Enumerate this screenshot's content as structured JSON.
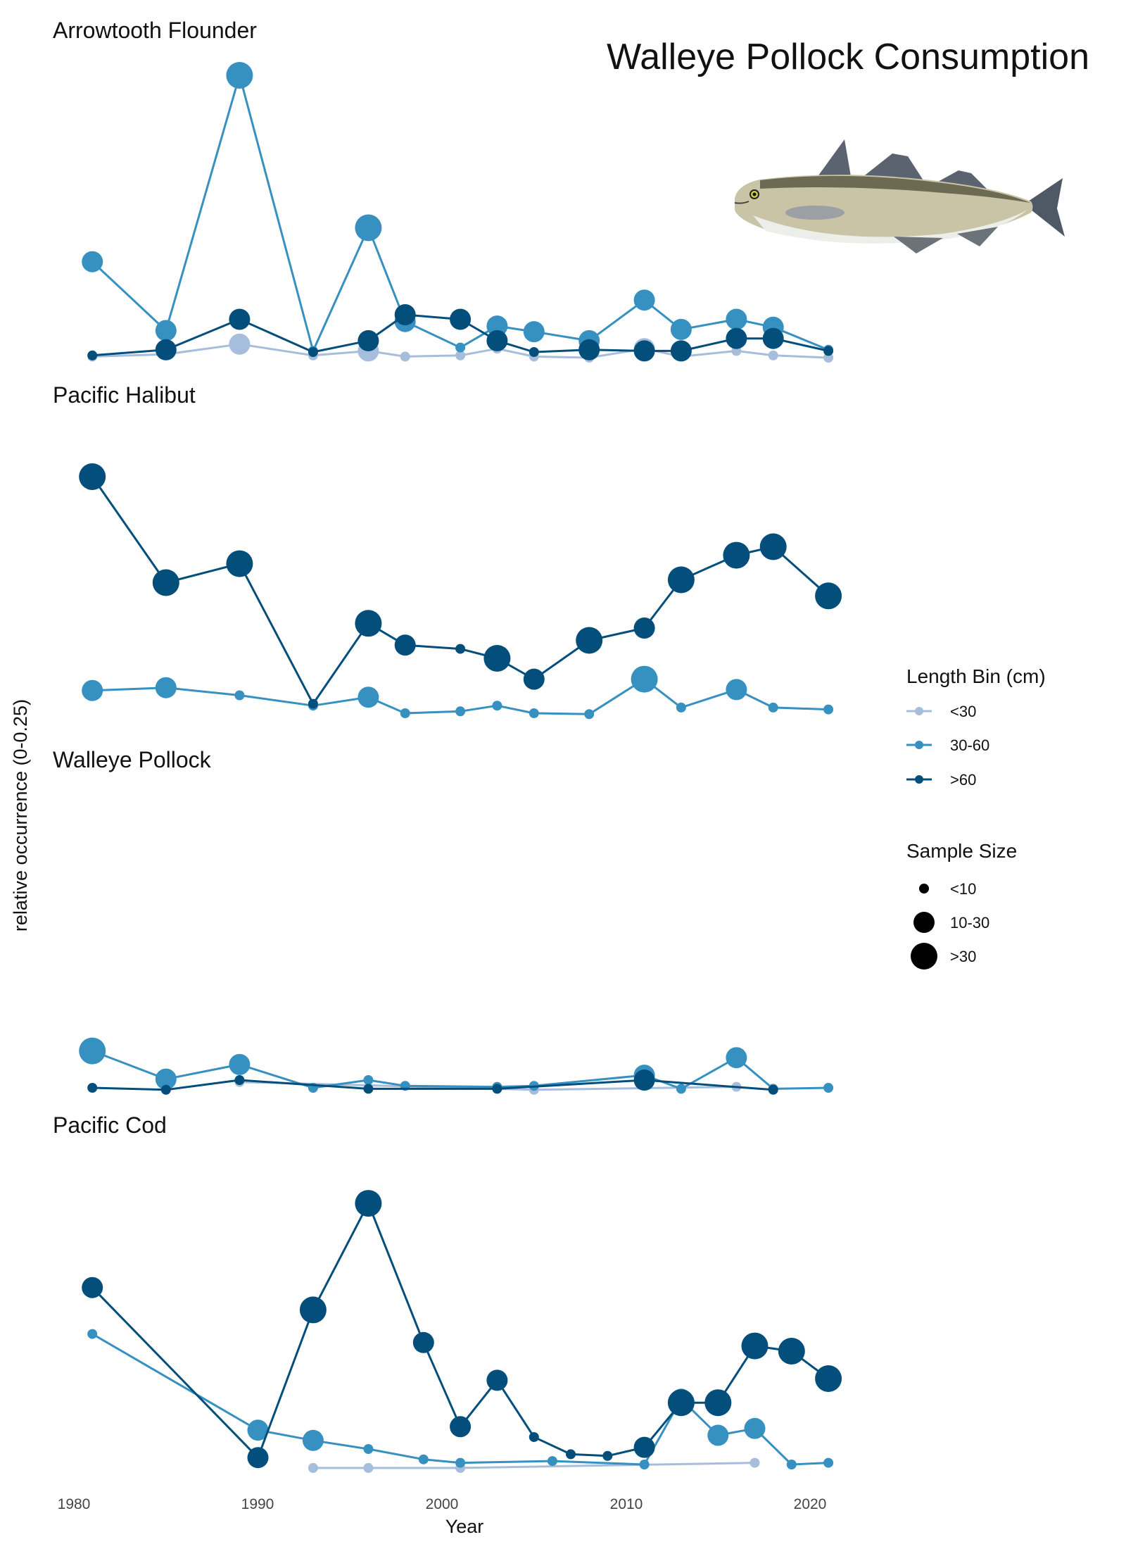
{
  "title": "Walleye Pollock Consumption",
  "image_alt": "Walleye pollock illustration",
  "chart_data": {
    "type": "line",
    "xlabel": "Year",
    "ylabel": "relative occurrence (0-0.25)",
    "xlim": [
      1980,
      2022
    ],
    "xticks": [
      1980,
      1990,
      2000,
      2010,
      2020
    ],
    "legend": {
      "length_title": "Length Bin (cm)",
      "length_bins": [
        {
          "label": "<30",
          "color": "#a6bddb"
        },
        {
          "label": "30-60",
          "color": "#3690c0"
        },
        {
          "label": ">60",
          "color": "#034e7b"
        }
      ],
      "size_title": "Sample Size",
      "sizes": [
        {
          "label": "<10",
          "size": 1
        },
        {
          "label": "10-30",
          "size": 2
        },
        {
          "label": ">30",
          "size": 3
        }
      ],
      "placement": "right"
    },
    "panels": [
      {
        "name": "Arrowtooth Flounder",
        "ylim": [
          0,
          0.25
        ],
        "series": [
          {
            "bin": "<30",
            "points": [
              [
                1981,
                0.001,
                1
              ],
              [
                1985,
                0.003,
                1
              ],
              [
                1989,
                0.012,
                2
              ],
              [
                1993,
                0.002,
                1
              ],
              [
                1996,
                0.006,
                2
              ],
              [
                1998,
                0.001,
                1
              ],
              [
                2001,
                0.002,
                1
              ],
              [
                2003,
                0.008,
                1
              ],
              [
                2005,
                0.001,
                1
              ],
              [
                2008,
                0.0,
                1
              ],
              [
                2011,
                0.008,
                2
              ],
              [
                2013,
                0.001,
                1
              ],
              [
                2016,
                0.006,
                1
              ],
              [
                2018,
                0.002,
                1
              ],
              [
                2021,
                0.0,
                1
              ]
            ]
          },
          {
            "bin": "30-60",
            "points": [
              [
                1981,
                0.085,
                2
              ],
              [
                1985,
                0.024,
                2
              ],
              [
                1989,
                0.25,
                3
              ],
              [
                1993,
                0.006,
                1
              ],
              [
                1996,
                0.115,
                3
              ],
              [
                1998,
                0.032,
                2
              ],
              [
                2001,
                0.009,
                1
              ],
              [
                2003,
                0.028,
                2
              ],
              [
                2005,
                0.023,
                2
              ],
              [
                2008,
                0.015,
                2
              ],
              [
                2011,
                0.051,
                2
              ],
              [
                2013,
                0.025,
                2
              ],
              [
                2016,
                0.034,
                2
              ],
              [
                2018,
                0.027,
                2
              ],
              [
                2021,
                0.007,
                1
              ]
            ]
          },
          {
            "bin": ">60",
            "points": [
              [
                1981,
                0.002,
                1
              ],
              [
                1985,
                0.007,
                2
              ],
              [
                1989,
                0.034,
                2
              ],
              [
                1993,
                0.005,
                1
              ],
              [
                1996,
                0.015,
                2
              ],
              [
                1998,
                0.038,
                2
              ],
              [
                2001,
                0.034,
                2
              ],
              [
                2003,
                0.015,
                2
              ],
              [
                2005,
                0.005,
                1
              ],
              [
                2008,
                0.007,
                2
              ],
              [
                2011,
                0.006,
                2
              ],
              [
                2013,
                0.006,
                2
              ],
              [
                2016,
                0.017,
                2
              ],
              [
                2018,
                0.017,
                2
              ],
              [
                2021,
                0.006,
                1
              ]
            ]
          }
        ]
      },
      {
        "name": "Pacific Halibut",
        "ylim": [
          0,
          0.25
        ],
        "series": [
          {
            "bin": "30-60",
            "points": [
              [
                1981,
                0.024,
                2
              ],
              [
                1985,
                0.027,
                2
              ],
              [
                1989,
                0.019,
                1
              ],
              [
                1993,
                0.008,
                1
              ],
              [
                1996,
                0.017,
                2
              ],
              [
                1998,
                0.0,
                1
              ],
              [
                2001,
                0.002,
                1
              ],
              [
                2003,
                0.008,
                1
              ],
              [
                2005,
                0.0,
                1
              ],
              [
                2008,
                -0.001,
                1
              ],
              [
                2011,
                0.036,
                3
              ],
              [
                2013,
                0.006,
                1
              ],
              [
                2016,
                0.025,
                2
              ],
              [
                2018,
                0.006,
                1
              ],
              [
                2021,
                0.004,
                1
              ]
            ]
          },
          {
            "bin": ">60",
            "points": [
              [
                1981,
                0.25,
                3
              ],
              [
                1985,
                0.138,
                3
              ],
              [
                1989,
                0.158,
                3
              ],
              [
                1993,
                0.01,
                1
              ],
              [
                1996,
                0.095,
                3
              ],
              [
                1998,
                0.072,
                2
              ],
              [
                2001,
                0.068,
                1
              ],
              [
                2003,
                0.058,
                3
              ],
              [
                2005,
                0.036,
                2
              ],
              [
                2008,
                0.077,
                3
              ],
              [
                2011,
                0.09,
                2
              ],
              [
                2013,
                0.141,
                3
              ],
              [
                2016,
                0.167,
                3
              ],
              [
                2018,
                0.176,
                3
              ],
              [
                2021,
                0.124,
                3
              ]
            ]
          }
        ]
      },
      {
        "name": "Walleye Pollock",
        "ylim": [
          0,
          0.25
        ],
        "series": [
          {
            "bin": "<30",
            "points": [
              [
                1989,
                0.006,
                1
              ],
              [
                2005,
                -0.002,
                1
              ],
              [
                2016,
                0.001,
                1
              ]
            ]
          },
          {
            "bin": "30-60",
            "points": [
              [
                1981,
                0.038,
                3
              ],
              [
                1985,
                0.009,
                2
              ],
              [
                1989,
                0.024,
                2
              ],
              [
                1993,
                0.0,
                1
              ],
              [
                1996,
                0.008,
                1
              ],
              [
                1998,
                0.002,
                1
              ],
              [
                2003,
                0.001,
                1
              ],
              [
                2005,
                0.002,
                1
              ],
              [
                2011,
                0.013,
                2
              ],
              [
                2013,
                -0.001,
                1
              ],
              [
                2016,
                0.031,
                2
              ],
              [
                2018,
                -0.001,
                1
              ],
              [
                2021,
                0.0,
                1
              ]
            ]
          },
          {
            "bin": ">60",
            "points": [
              [
                1981,
                0.0,
                1
              ],
              [
                1985,
                -0.002,
                1
              ],
              [
                1989,
                0.008,
                1
              ],
              [
                1996,
                -0.001,
                1
              ],
              [
                2003,
                -0.001,
                1
              ],
              [
                2011,
                0.008,
                2
              ],
              [
                2018,
                -0.002,
                1
              ]
            ]
          }
        ]
      },
      {
        "name": "Pacific Cod",
        "ylim": [
          0,
          0.25
        ],
        "series": [
          {
            "bin": "<30",
            "points": [
              [
                1993,
                -0.002,
                1
              ],
              [
                1996,
                -0.002,
                1
              ],
              [
                2001,
                -0.002,
                1
              ],
              [
                2017,
                0.001,
                1
              ]
            ]
          },
          {
            "bin": "30-60",
            "points": [
              [
                1981,
                0.076,
                1
              ],
              [
                1990,
                0.02,
                2
              ],
              [
                1993,
                0.014,
                2
              ],
              [
                1996,
                0.009,
                1
              ],
              [
                1999,
                0.003,
                1
              ],
              [
                2001,
                0.001,
                1
              ],
              [
                2006,
                0.002,
                1
              ],
              [
                2011,
                0.0,
                1
              ],
              [
                2013,
                0.038,
                2
              ],
              [
                2015,
                0.017,
                2
              ],
              [
                2017,
                0.021,
                2
              ],
              [
                2019,
                0.0,
                1
              ],
              [
                2021,
                0.001,
                1
              ]
            ]
          },
          {
            "bin": ">60",
            "points": [
              [
                1981,
                0.103,
                2
              ],
              [
                1990,
                0.004,
                2
              ],
              [
                1993,
                0.09,
                3
              ],
              [
                1996,
                0.152,
                3
              ],
              [
                1999,
                0.071,
                2
              ],
              [
                2001,
                0.022,
                2
              ],
              [
                2003,
                0.049,
                2
              ],
              [
                2005,
                0.016,
                1
              ],
              [
                2007,
                0.006,
                1
              ],
              [
                2009,
                0.005,
                1
              ],
              [
                2011,
                0.01,
                2
              ],
              [
                2013,
                0.036,
                3
              ],
              [
                2015,
                0.036,
                3
              ],
              [
                2017,
                0.069,
                3
              ],
              [
                2019,
                0.066,
                3
              ],
              [
                2021,
                0.05,
                3
              ]
            ]
          }
        ]
      }
    ]
  }
}
